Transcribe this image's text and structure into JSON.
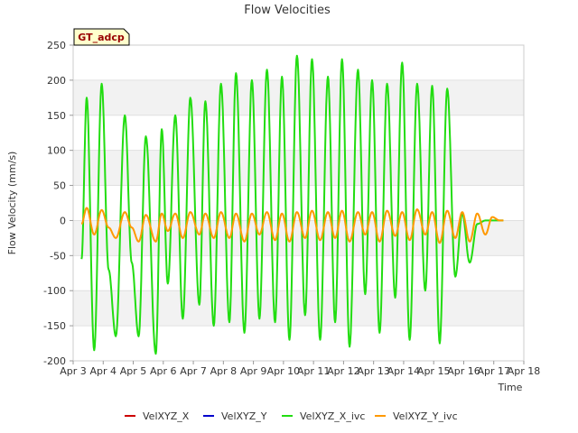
{
  "chart_data": {
    "type": "line",
    "title": "Flow Velocities",
    "xlabel": "Time",
    "ylabel": "Flow Velocity (mm/s)",
    "tag": "GT_adcp",
    "ylim": [
      -200,
      250
    ],
    "yticks": [
      -200,
      -150,
      -100,
      -50,
      0,
      50,
      100,
      150,
      200,
      250
    ],
    "xlim_days": [
      0,
      15
    ],
    "xticks": [
      {
        "day": 0,
        "label": "Apr 3"
      },
      {
        "day": 1,
        "label": "Apr 4"
      },
      {
        "day": 2,
        "label": "Apr 5"
      },
      {
        "day": 3,
        "label": "Apr 6"
      },
      {
        "day": 4,
        "label": "Apr 7"
      },
      {
        "day": 5,
        "label": "Apr 8"
      },
      {
        "day": 6,
        "label": "Apr 9"
      },
      {
        "day": 7,
        "label": "Apr 10"
      },
      {
        "day": 8,
        "label": "Apr 11"
      },
      {
        "day": 9,
        "label": "Apr 12"
      },
      {
        "day": 10,
        "label": "Apr 13"
      },
      {
        "day": 11,
        "label": "Apr 14"
      },
      {
        "day": 12,
        "label": "Apr 15"
      },
      {
        "day": 13,
        "label": "Apr 16"
      },
      {
        "day": 14,
        "label": "Apr 17"
      },
      {
        "day": 15,
        "label": "Apr 18"
      }
    ],
    "series": [
      {
        "name": "VelXYZ_X",
        "color": "#cc0000",
        "x": [],
        "y": []
      },
      {
        "name": "VelXYZ_Y",
        "color": "#0000cc",
        "x": [],
        "y": []
      },
      {
        "name": "VelXYZ_X_ivc",
        "color": "#22dd11",
        "x": [
          0.28,
          0.45,
          0.7,
          0.95,
          1.18,
          1.42,
          1.72,
          1.95,
          2.18,
          2.42,
          2.75,
          2.95,
          3.15,
          3.4,
          3.65,
          3.9,
          4.2,
          4.4,
          4.68,
          4.92,
          5.2,
          5.42,
          5.7,
          5.95,
          6.2,
          6.45,
          6.72,
          6.95,
          7.2,
          7.45,
          7.72,
          7.95,
          8.22,
          8.48,
          8.72,
          8.95,
          9.2,
          9.48,
          9.72,
          9.95,
          10.2,
          10.45,
          10.72,
          10.95,
          11.2,
          11.45,
          11.72,
          11.95,
          12.2,
          12.45,
          12.72,
          12.95,
          13.2,
          13.45,
          13.72,
          13.95,
          14.2,
          14.32
        ],
        "y": [
          -55,
          175,
          -185,
          195,
          -70,
          -165,
          150,
          -60,
          -165,
          120,
          -190,
          130,
          -90,
          150,
          -140,
          175,
          -120,
          170,
          -150,
          195,
          -145,
          210,
          -160,
          200,
          -140,
          215,
          -145,
          205,
          -170,
          235,
          -135,
          230,
          -170,
          205,
          -145,
          230,
          -180,
          215,
          -105,
          200,
          -160,
          195,
          -110,
          225,
          -170,
          195,
          -100,
          192,
          -175,
          188,
          -80,
          10,
          -60,
          -5,
          0,
          0,
          0,
          0
        ]
      },
      {
        "name": "VelXYZ_Y_ivc",
        "color": "#ff9900",
        "x": [
          0.28,
          0.45,
          0.7,
          0.95,
          1.18,
          1.42,
          1.72,
          1.95,
          2.18,
          2.42,
          2.75,
          2.95,
          3.15,
          3.4,
          3.65,
          3.9,
          4.2,
          4.4,
          4.68,
          4.92,
          5.2,
          5.42,
          5.7,
          5.95,
          6.2,
          6.45,
          6.72,
          6.95,
          7.2,
          7.45,
          7.72,
          7.95,
          8.22,
          8.48,
          8.72,
          8.95,
          9.2,
          9.48,
          9.72,
          9.95,
          10.2,
          10.45,
          10.72,
          10.95,
          11.2,
          11.45,
          11.72,
          11.95,
          12.2,
          12.45,
          12.72,
          12.95,
          13.2,
          13.45,
          13.72,
          13.95,
          14.2,
          14.32
        ],
        "y": [
          -5,
          18,
          -20,
          15,
          -10,
          -25,
          12,
          -10,
          -30,
          8,
          -30,
          10,
          -15,
          10,
          -25,
          12,
          -20,
          10,
          -25,
          12,
          -25,
          10,
          -30,
          10,
          -20,
          12,
          -28,
          10,
          -30,
          12,
          -25,
          14,
          -28,
          12,
          -25,
          14,
          -30,
          12,
          -20,
          12,
          -30,
          14,
          -22,
          12,
          -28,
          16,
          -20,
          12,
          -32,
          14,
          -25,
          12,
          -30,
          10,
          -20,
          5,
          0,
          0
        ]
      }
    ],
    "legend_position": "bottom"
  }
}
